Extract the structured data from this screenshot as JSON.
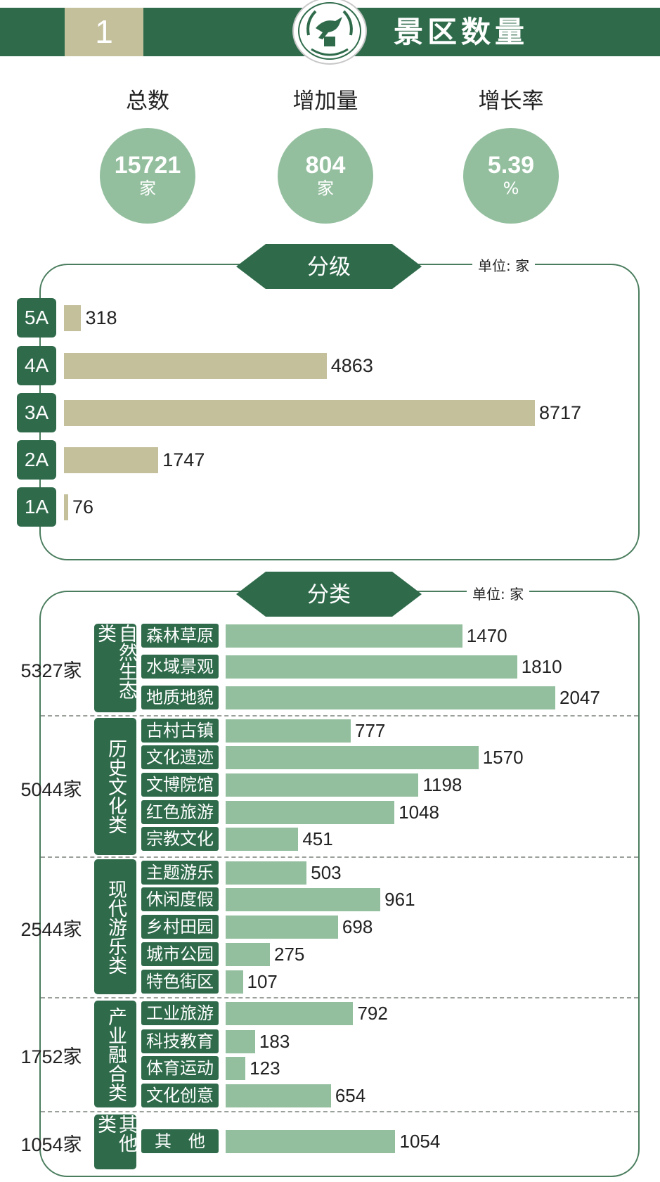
{
  "header": {
    "number": "1",
    "title": "景区数量"
  },
  "summary": [
    {
      "label": "总数",
      "value": "15721",
      "unit": "家"
    },
    {
      "label": "增加量",
      "value": "804",
      "unit": "家"
    },
    {
      "label": "增长率",
      "value": "5.39",
      "unit": "%"
    }
  ],
  "colors": {
    "dark_green": "#2f6b4b",
    "light_green": "#94bf9f",
    "khaki": "#c4c09c"
  },
  "chart_data": [
    {
      "type": "bar",
      "title": "分级",
      "unit_label": "单位: 家",
      "categories": [
        "5A",
        "4A",
        "3A",
        "2A",
        "1A"
      ],
      "values": [
        318,
        4863,
        8717,
        1747,
        76
      ]
    },
    {
      "type": "bar",
      "title": "分类",
      "unit_label": "单位: 家",
      "groups": [
        {
          "name": "自然生态类",
          "total": "5327家",
          "categories": [
            "森林草原",
            "水域景观",
            "地质地貌"
          ],
          "values": [
            1470,
            1810,
            2047
          ]
        },
        {
          "name": "历史文化类",
          "total": "5044家",
          "categories": [
            "古村古镇",
            "文化遗迹",
            "文博院馆",
            "红色旅游",
            "宗教文化"
          ],
          "values": [
            777,
            1570,
            1198,
            1048,
            451
          ]
        },
        {
          "name": "现代游乐类",
          "total": "2544家",
          "categories": [
            "主题游乐",
            "休闲度假",
            "乡村田园",
            "城市公园",
            "特色街区"
          ],
          "values": [
            503,
            961,
            698,
            275,
            107
          ]
        },
        {
          "name": "产业融合类",
          "total": "1752家",
          "categories": [
            "工业旅游",
            "科技教育",
            "体育运动",
            "文化创意"
          ],
          "values": [
            792,
            183,
            123,
            654
          ]
        },
        {
          "name": "其他类",
          "total": "1054家",
          "categories": [
            "其　他"
          ],
          "values": [
            1054
          ]
        }
      ]
    }
  ]
}
